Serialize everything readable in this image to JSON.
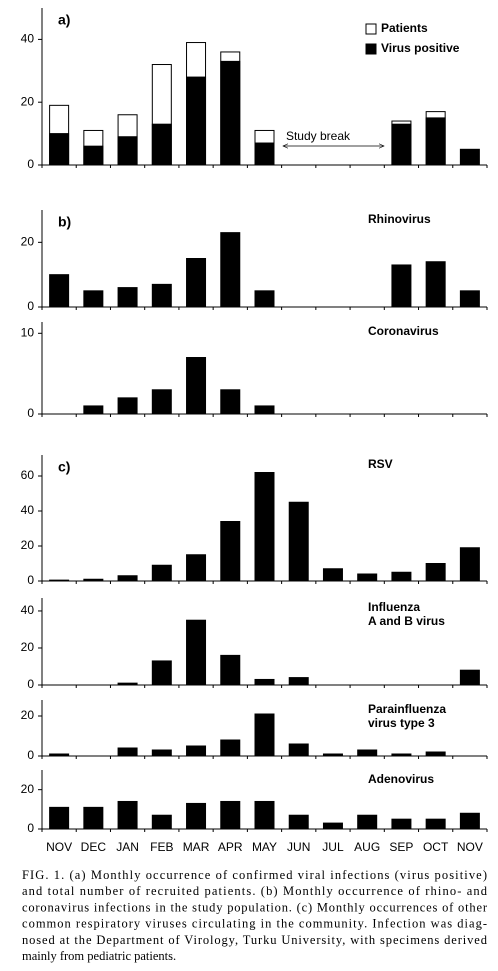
{
  "chart_data": [
    {
      "type": "bar",
      "panel_label": "a)",
      "ylim": [
        0,
        50
      ],
      "yticks": [
        0,
        20,
        40
      ],
      "legend": "upper right",
      "annotation": "Study break",
      "series": [
        {
          "name": "Patients",
          "color": "#ffffff",
          "values": [
            19,
            11,
            16,
            32,
            39,
            36,
            11,
            null,
            null,
            null,
            14,
            17,
            null
          ]
        },
        {
          "name": "Virus positive",
          "color": "#000000",
          "values": [
            10,
            6,
            9,
            13,
            28,
            33,
            7,
            null,
            null,
            null,
            13,
            15,
            5
          ]
        }
      ]
    },
    {
      "type": "bar",
      "panel_label": "b)",
      "title": "Rhinovirus",
      "ylim": [
        0,
        30
      ],
      "yticks": [
        0,
        20
      ],
      "color": "#000000",
      "values": [
        10,
        5,
        6,
        7,
        15,
        23,
        5,
        null,
        null,
        null,
        13,
        14,
        5
      ]
    },
    {
      "type": "bar",
      "title": "Coronavirus",
      "ylim": [
        0,
        11.4
      ],
      "yticks": [
        0,
        10
      ],
      "color": "#000000",
      "values": [
        0,
        1,
        2,
        3,
        7,
        3,
        1,
        null,
        null,
        null,
        null,
        null,
        null
      ]
    },
    {
      "type": "bar",
      "panel_label": "c)",
      "title": "RSV",
      "ylim": [
        0,
        72
      ],
      "yticks": [
        0,
        20,
        40,
        60
      ],
      "color": "#000000",
      "values": [
        0.5,
        1,
        3,
        9,
        15,
        34,
        62,
        45,
        7,
        4,
        5,
        10,
        19
      ]
    },
    {
      "type": "bar",
      "title": [
        "Influenza",
        "A and B virus"
      ],
      "ylim": [
        0,
        47
      ],
      "yticks": [
        0,
        20,
        40
      ],
      "color": "#000000",
      "values": [
        null,
        null,
        1,
        13,
        35,
        16,
        3,
        4,
        null,
        null,
        null,
        null,
        8
      ]
    },
    {
      "type": "bar",
      "title": [
        "Parainfluenza",
        "virus type 3"
      ],
      "ylim": [
        0,
        28
      ],
      "yticks": [
        0,
        20
      ],
      "color": "#000000",
      "values": [
        1,
        0,
        4,
        3,
        5,
        8,
        21,
        6,
        1,
        3,
        1,
        2,
        null
      ]
    },
    {
      "type": "bar",
      "title": "Adenovirus",
      "ylim": [
        0,
        30
      ],
      "yticks": [
        0,
        20
      ],
      "color": "#000000",
      "categories": [
        "NOV",
        "DEC",
        "JAN",
        "FEB",
        "MAR",
        "APR",
        "MAY",
        "JUN",
        "JUL",
        "AUG",
        "SEP",
        "OCT",
        "NOV"
      ],
      "values": [
        11,
        11,
        14,
        7,
        13,
        14,
        14,
        7,
        3,
        7,
        5,
        5,
        8
      ]
    }
  ],
  "caption": [
    "FIG. 1. (a) Monthly occurrence of confirmed viral infections (virus positive)",
    "and total number of recruited patients. (b) Monthly occurrence of rhino- and",
    "coronavirus infections in the study population. (c) Monthly occurrences of other",
    "common respiratory viruses circulating in the community. Infection was diag-",
    "nosed at the Department of Virology, Turku University, with specimens derived",
    "mainly from pediatric patients."
  ]
}
